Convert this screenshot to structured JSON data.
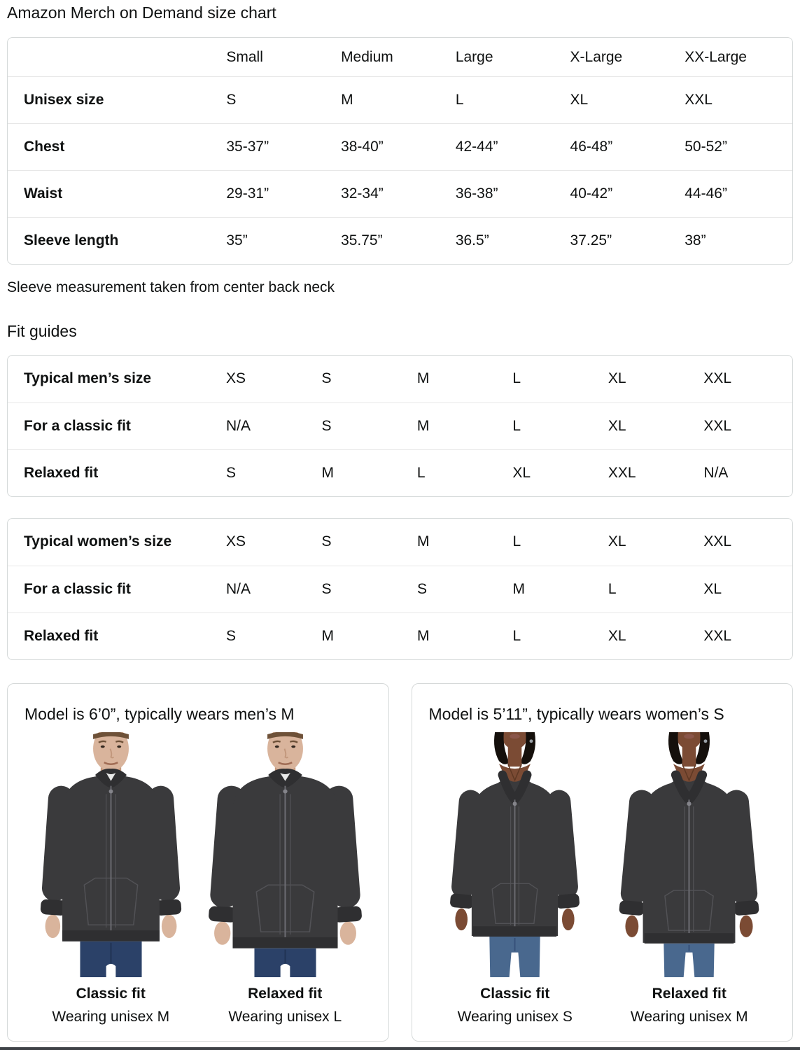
{
  "page": {
    "title": "Amazon Merch on Demand size chart",
    "note": "Sleeve measurement taken from center back neck",
    "fit_guides_heading": "Fit guides"
  },
  "size_chart": {
    "columns": [
      "Small",
      "Medium",
      "Large",
      "X-Large",
      "XX-Large"
    ],
    "rows": [
      {
        "label": "Unisex size",
        "values": [
          "S",
          "M",
          "L",
          "XL",
          "XXL"
        ]
      },
      {
        "label": "Chest",
        "values": [
          "35-37”",
          "38-40”",
          "42-44”",
          "46-48”",
          "50-52”"
        ]
      },
      {
        "label": "Waist",
        "values": [
          "29-31”",
          "32-34”",
          "36-38”",
          "40-42”",
          "44-46”"
        ]
      },
      {
        "label": "Sleeve length",
        "values": [
          "35”",
          "35.75”",
          "36.5”",
          "37.25”",
          "38”"
        ]
      }
    ]
  },
  "mens_fit_guide": {
    "rows": [
      {
        "label": "Typical men’s size",
        "values": [
          "XS",
          "S",
          "M",
          "L",
          "XL",
          "XXL"
        ]
      },
      {
        "label": "For a classic fit",
        "values": [
          "N/A",
          "S",
          "M",
          "L",
          "XL",
          "XXL"
        ]
      },
      {
        "label": "Relaxed fit",
        "values": [
          "S",
          "M",
          "L",
          "XL",
          "XXL",
          "N/A"
        ]
      }
    ]
  },
  "womens_fit_guide": {
    "rows": [
      {
        "label": "Typical women’s size",
        "values": [
          "XS",
          "S",
          "M",
          "L",
          "XL",
          "XXL"
        ]
      },
      {
        "label": "For a classic fit",
        "values": [
          "N/A",
          "S",
          "S",
          "M",
          "L",
          "XL"
        ]
      },
      {
        "label": "Relaxed fit",
        "values": [
          "S",
          "M",
          "M",
          "L",
          "XL",
          "XXL"
        ]
      }
    ]
  },
  "model_cards": [
    {
      "heading": "Model is 6’0”, typically wears men’s M",
      "model": "male",
      "figures": [
        {
          "fit_label": "Classic fit",
          "wearing": "Wearing unisex M"
        },
        {
          "fit_label": "Relaxed fit",
          "wearing": "Wearing unisex L"
        }
      ]
    },
    {
      "heading": "Model is 5’11”, typically wears women’s S",
      "model": "female",
      "figures": [
        {
          "fit_label": "Classic fit",
          "wearing": "Wearing unisex S"
        },
        {
          "fit_label": "Relaxed fit",
          "wearing": "Wearing unisex M"
        }
      ]
    }
  ],
  "colors": {
    "text": "#0F1111",
    "table_border": "#D5D9D9",
    "row_divider": "#E7E7E7",
    "hoodie": "#3A3A3C",
    "hoodie_trim": "#2F2F31",
    "hoodie_seam": "#525256",
    "zipper": "#6A6A70",
    "tee_glimpse": "#E9EAEA",
    "skin_male": "#D9B49C",
    "skin_male_shadow": "#C2977C",
    "hair_male": "#6E5138",
    "skin_female": "#7B4B34",
    "skin_female_shadow": "#5E3823",
    "hair_female": "#15100C",
    "lips_female": "#8A564A",
    "jeans_male": "#2B4168",
    "jeans_male_dark": "#203354",
    "jeans_female": "#49688E",
    "jeans_female_dark": "#36517A",
    "bottom_bar": "#3E4247"
  }
}
